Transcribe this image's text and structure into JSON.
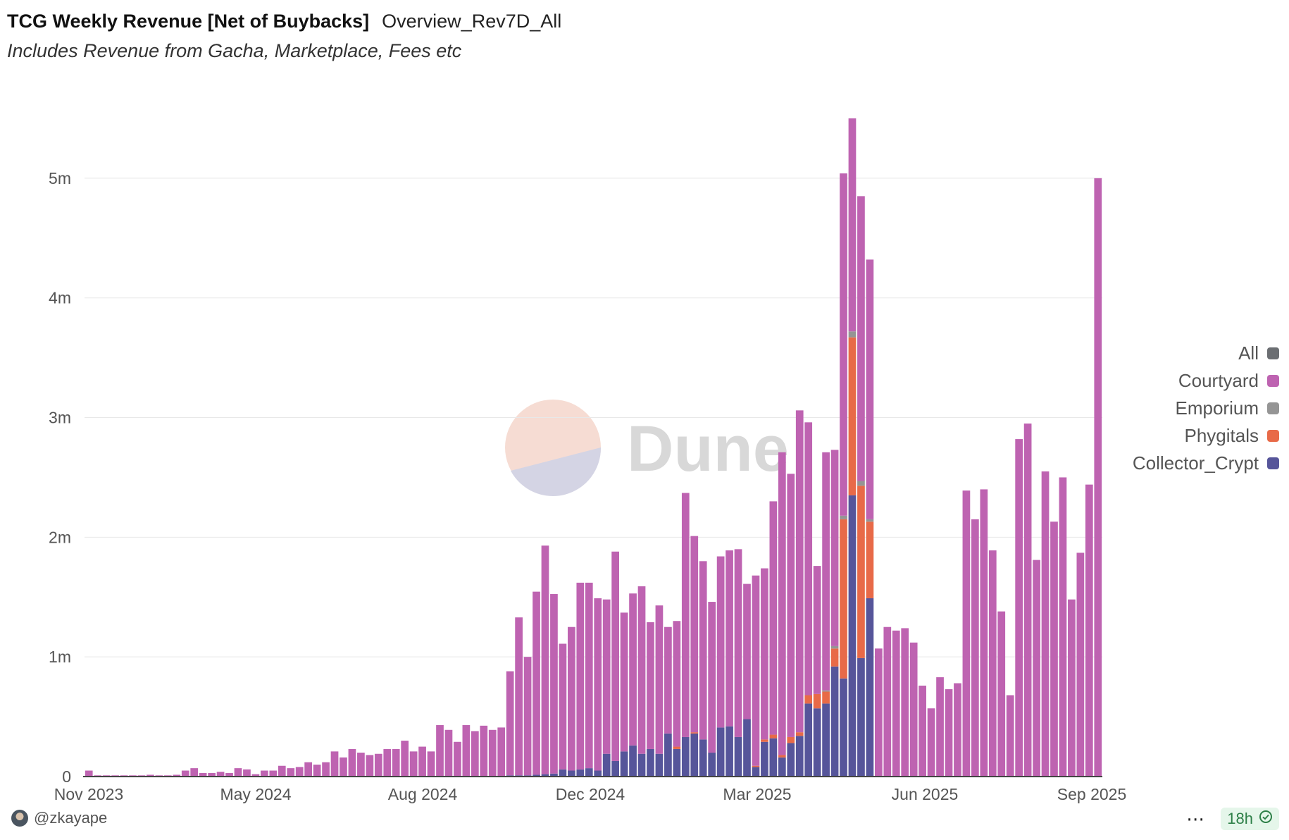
{
  "header": {
    "title": "TCG Weekly Revenue [Net of Buybacks]",
    "query_name": "Overview_Rev7D_All",
    "subtitle": "Includes Revenue from Gacha, Marketplace, Fees etc"
  },
  "watermark": {
    "text": "Dune"
  },
  "legend": {
    "items": [
      {
        "label": "All",
        "color": "#6b6e72"
      },
      {
        "label": "Courtyard",
        "color": "#be63b1"
      },
      {
        "label": "Emporium",
        "color": "#959595"
      },
      {
        "label": "Phygitals",
        "color": "#e86a48"
      },
      {
        "label": "Collector_Crypt",
        "color": "#56559a"
      }
    ]
  },
  "footer": {
    "author": "@zkayape",
    "refresh": "18h"
  },
  "chart_data": {
    "type": "bar",
    "stacked": true,
    "x_ticks": [
      "Nov 2023",
      "May 2024",
      "Aug 2024",
      "Dec 2024",
      "Mar 2025",
      "Jun 2025",
      "Sep 2025"
    ],
    "y_ticks": [
      "0",
      "1m",
      "2m",
      "3m",
      "4m",
      "5m"
    ],
    "ylim": [
      0,
      5700000
    ],
    "grid": true,
    "legend_position": "right",
    "series": [
      {
        "name": "Collector_Crypt",
        "color": "#56559a",
        "values": [
          0,
          0,
          0,
          0,
          0,
          0,
          0,
          0,
          0,
          0,
          0,
          0,
          0,
          0,
          0,
          0,
          0,
          0,
          0,
          0,
          0,
          0,
          0,
          0,
          0,
          0,
          0,
          0,
          0,
          0,
          0,
          0,
          0,
          0,
          0,
          0,
          0,
          0,
          0,
          0,
          0,
          0,
          0,
          0,
          5000,
          5000,
          5000,
          5000,
          10000,
          10000,
          10000,
          15000,
          20000,
          25000,
          60000,
          50000,
          60000,
          70000,
          50000,
          190000,
          130000,
          210000,
          260000,
          190000,
          230000,
          190000,
          360000,
          230000,
          330000,
          360000,
          310000,
          200000,
          410000,
          420000,
          330000,
          480000,
          80000,
          290000,
          320000,
          160000,
          280000,
          340000,
          610000,
          570000,
          610000,
          920000,
          820000,
          2350000,
          990000,
          1490000
        ]
      },
      {
        "name": "Phygitals",
        "color": "#e86a48",
        "values": [
          0,
          0,
          0,
          0,
          0,
          0,
          0,
          0,
          0,
          0,
          0,
          0,
          0,
          0,
          0,
          0,
          0,
          0,
          0,
          0,
          0,
          0,
          0,
          0,
          0,
          0,
          0,
          0,
          0,
          0,
          0,
          0,
          0,
          0,
          0,
          0,
          0,
          0,
          0,
          0,
          0,
          0,
          0,
          0,
          0,
          0,
          0,
          0,
          0,
          0,
          0,
          0,
          0,
          0,
          0,
          0,
          0,
          0,
          0,
          0,
          0,
          0,
          0,
          0,
          0,
          0,
          0,
          20000,
          0,
          10000,
          0,
          0,
          0,
          0,
          0,
          0,
          10000,
          20000,
          30000,
          20000,
          50000,
          30000,
          70000,
          120000,
          100000,
          150000,
          1330000,
          1320000,
          1440000,
          640000
        ]
      },
      {
        "name": "Emporium",
        "color": "#959595",
        "values": [
          0,
          0,
          0,
          0,
          0,
          0,
          0,
          0,
          0,
          0,
          0,
          0,
          0,
          0,
          0,
          0,
          0,
          0,
          0,
          0,
          0,
          0,
          0,
          0,
          0,
          0,
          0,
          0,
          0,
          0,
          0,
          0,
          0,
          0,
          0,
          0,
          0,
          0,
          0,
          0,
          0,
          0,
          0,
          0,
          0,
          0,
          0,
          0,
          0,
          0,
          0,
          0,
          0,
          0,
          0,
          0,
          0,
          0,
          0,
          0,
          0,
          0,
          0,
          0,
          0,
          0,
          0,
          0,
          0,
          0,
          0,
          0,
          0,
          0,
          0,
          0,
          0,
          0,
          0,
          0,
          0,
          0,
          0,
          0,
          10000,
          20000,
          30000,
          50000,
          40000,
          20000
        ]
      },
      {
        "name": "Courtyard",
        "color": "#be63b1",
        "values": [
          50000,
          10000,
          10000,
          10000,
          10000,
          10000,
          10000,
          15000,
          10000,
          10000,
          15000,
          50000,
          70000,
          30000,
          30000,
          40000,
          30000,
          70000,
          60000,
          20000,
          50000,
          50000,
          90000,
          70000,
          80000,
          120000,
          100000,
          120000,
          210000,
          160000,
          230000,
          200000,
          180000,
          190000,
          230000,
          230000,
          300000,
          210000,
          250000,
          210000,
          430000,
          390000,
          290000,
          430000,
          375000,
          420000,
          385000,
          405000,
          870000,
          1320000,
          990000,
          1530000,
          1910000,
          1500000,
          1050000,
          1200000,
          1560000,
          1550000,
          1440000,
          1290000,
          1750000,
          1160000,
          1270000,
          1400000,
          1060000,
          1240000,
          890000,
          1050000,
          2040000,
          1640000,
          1490000,
          1260000,
          1430000,
          1470000,
          1570000,
          1130000,
          1590000,
          1430000,
          1950000,
          2530000,
          2200000,
          2690000,
          2280000,
          1070000,
          1990000,
          1640000,
          2860000,
          1780000,
          2380000,
          2170000,
          1070000,
          1250000,
          1220000,
          1240000,
          1120000,
          760000,
          570000,
          830000,
          730000,
          780000,
          2390000,
          2150000,
          2400000,
          1890000,
          1380000,
          680000,
          2820000,
          2950000,
          1810000,
          2550000,
          2130000,
          2500000,
          1480000,
          1870000,
          2440000,
          5000000
        ]
      }
    ]
  }
}
